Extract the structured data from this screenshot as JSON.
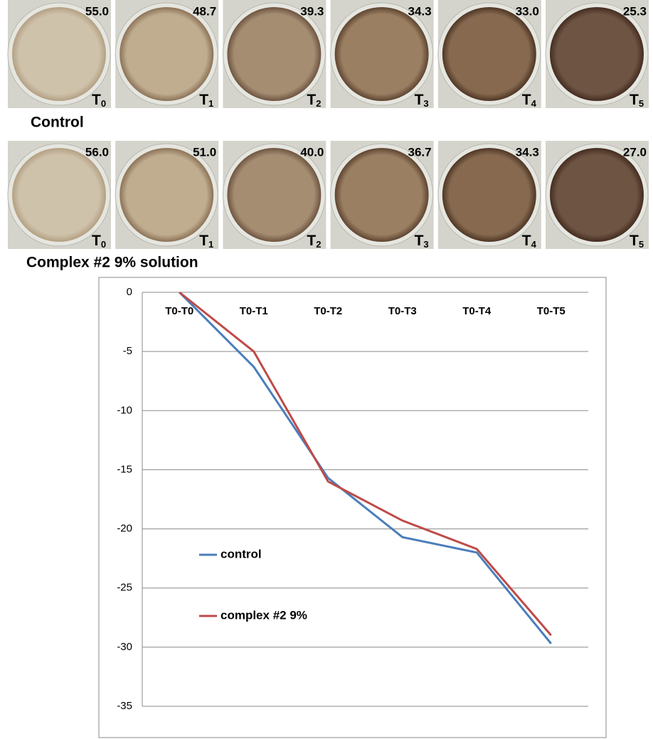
{
  "panels": [
    {
      "label": "Control",
      "items": [
        {
          "value": "55.0",
          "time": "T",
          "sub": "0"
        },
        {
          "value": "48.7",
          "time": "T",
          "sub": "1"
        },
        {
          "value": "39.3",
          "time": "T",
          "sub": "2"
        },
        {
          "value": "34.3",
          "time": "T",
          "sub": "3"
        },
        {
          "value": "33.0",
          "time": "T",
          "sub": "4"
        },
        {
          "value": "25.3",
          "time": "T",
          "sub": "5"
        }
      ]
    },
    {
      "label": "Complex #2 9% solution",
      "items": [
        {
          "value": "56.0",
          "time": "T",
          "sub": "0"
        },
        {
          "value": "51.0",
          "time": "T",
          "sub": "1"
        },
        {
          "value": "40.0",
          "time": "T",
          "sub": "2"
        },
        {
          "value": "36.7",
          "time": "T",
          "sub": "3"
        },
        {
          "value": "34.3",
          "time": "T",
          "sub": "4"
        },
        {
          "value": "27.0",
          "time": "T",
          "sub": "5"
        }
      ]
    }
  ],
  "chart_data": {
    "type": "line",
    "categories": [
      "T0-T0",
      "T0-T1",
      "T0-T2",
      "T0-T3",
      "T0-T4",
      "T0-T5"
    ],
    "series": [
      {
        "name": "control",
        "color": "#4a7ebb",
        "values": [
          0,
          -6.3,
          -15.7,
          -20.7,
          -22.0,
          -29.7
        ]
      },
      {
        "name": "complex #2 9%",
        "color": "#be4b48",
        "values": [
          0,
          -5.0,
          -16.0,
          -19.3,
          -21.7,
          -29.0
        ]
      }
    ],
    "ylim": [
      -35,
      0
    ],
    "yticks": [
      0,
      -5,
      -10,
      -15,
      -20,
      -25,
      -30,
      -35
    ],
    "grid": true,
    "legend": "left"
  }
}
